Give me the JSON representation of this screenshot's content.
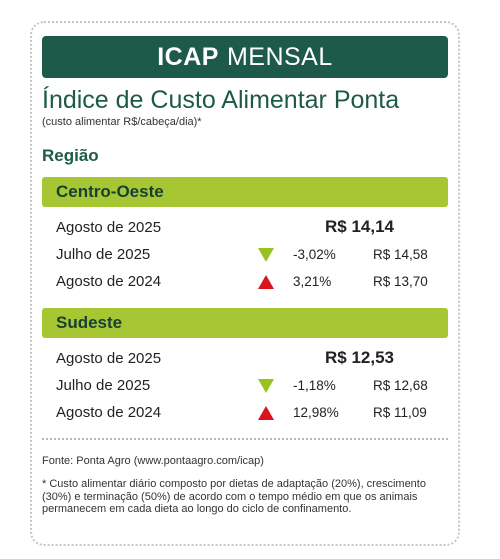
{
  "header": {
    "banner_bold": "ICAP",
    "banner_light": "MENSAL",
    "title": "Índice de Custo Alimentar Ponta",
    "subtitle": "(custo alimentar R$/cabeça/dia)*",
    "region_label": "Região"
  },
  "regions": [
    {
      "name": "Centro-Oeste",
      "current": {
        "period": "Agosto de 2025",
        "value": "R$ 14,14"
      },
      "comparisons": [
        {
          "period": "Julho de 2025",
          "direction": "down",
          "change": "-3,02%",
          "value": "R$ 14,58"
        },
        {
          "period": "Agosto de 2024",
          "direction": "up",
          "change": "3,21%",
          "value": "R$ 13,70"
        }
      ]
    },
    {
      "name": "Sudeste",
      "current": {
        "period": "Agosto de 2025",
        "value": "R$ 12,53"
      },
      "comparisons": [
        {
          "period": "Julho de 2025",
          "direction": "down",
          "change": "-1,18%",
          "value": "R$ 12,68"
        },
        {
          "period": "Agosto de 2024",
          "direction": "up",
          "change": "12,98%",
          "value": "R$ 11,09"
        }
      ]
    }
  ],
  "footer": {
    "source": "Fonte: Ponta Agro (www.pontaagro.com/icap)",
    "footnote": "* Custo alimentar diário composto por dietas de adaptação (20%), crescimento (30%) e terminação (50%) de acordo com o tempo médio em que os animais permanecem em cada dieta ao longo do ciclo de confinamento."
  },
  "colors": {
    "banner": "#1d5a4a",
    "band": "#a6c634",
    "arrow_down": "#98c21f",
    "arrow_up": "#d9141b"
  }
}
